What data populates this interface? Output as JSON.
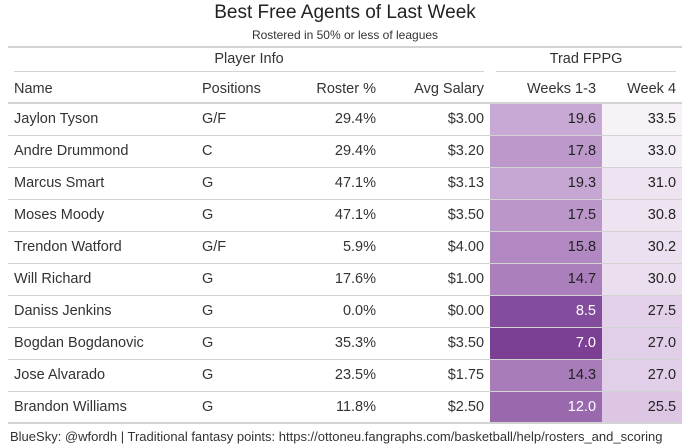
{
  "header": {
    "title": "Best Free Agents of Last Week",
    "subtitle": "Rostered in 50% or less of leagues"
  },
  "table": {
    "groups": [
      "Player Info",
      "Trad FPPG"
    ],
    "columns": [
      "Name",
      "Positions",
      "Roster %",
      "Avg Salary",
      "Weeks 1-3",
      "Week 4"
    ],
    "rows": [
      [
        "Jaylon Tyson",
        "G/F",
        "29.4%",
        "$3.00",
        "19.6",
        "33.5"
      ],
      [
        "Andre Drummond",
        "C",
        "29.4%",
        "$3.20",
        "17.8",
        "33.0"
      ],
      [
        "Marcus Smart",
        "G",
        "47.1%",
        "$3.13",
        "19.3",
        "31.0"
      ],
      [
        "Moses Moody",
        "G",
        "47.1%",
        "$3.50",
        "17.5",
        "30.8"
      ],
      [
        "Trendon Watford",
        "G/F",
        "5.9%",
        "$4.00",
        "15.8",
        "30.2"
      ],
      [
        "Will Richard",
        "G",
        "17.6%",
        "$1.00",
        "14.7",
        "30.0"
      ],
      [
        "Daniss Jenkins",
        "G",
        "0.0%",
        "$0.00",
        "8.5",
        "27.5"
      ],
      [
        "Bogdan Bogdanovic",
        "G",
        "35.3%",
        "$3.50",
        "7.0",
        "27.0"
      ],
      [
        "Jose Alvarado",
        "G",
        "23.5%",
        "$1.75",
        "14.3",
        "27.0"
      ],
      [
        "Brandon Williams",
        "G",
        "11.8%",
        "$2.50",
        "12.0",
        "25.5"
      ]
    ]
  },
  "footer": "BlueSky: @wfordh | Traditional fantasy points: https://ottoneu.fangraphs.com/basketball/help/rosters_and_scoring"
}
